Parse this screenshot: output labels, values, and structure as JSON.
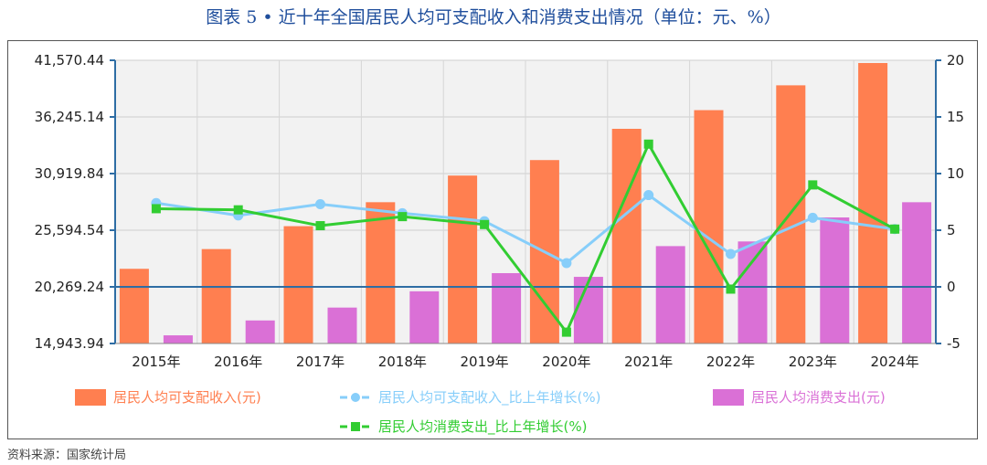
{
  "title": "图表 5 • 近十年全国居民人均可支配收入和消费支出情况（单位：元、%）",
  "source": "资料来源：国家统计局",
  "chart_data": {
    "type": "bar",
    "categories": [
      "2015年",
      "2016年",
      "2017年",
      "2018年",
      "2019年",
      "2020年",
      "2021年",
      "2022年",
      "2023年",
      "2024年"
    ],
    "left_ticks": [
      "41,570.44",
      "36,245.14",
      "30,919.84",
      "25,594.54",
      "20,269.24",
      "14,943.94"
    ],
    "right_ticks": [
      "20",
      "15",
      "10",
      "5",
      "0",
      "-5"
    ],
    "ylim_left": [
      14943.94,
      41570.44
    ],
    "ylim_right": [
      -5,
      20
    ],
    "grid": true,
    "legend_position": "bottom",
    "colors": {
      "income_bar": "#ff7f50",
      "income_growth": "#87cefa",
      "consumption_bar": "#da70d6",
      "consumption_growth": "#32cd32",
      "axis": "#2e6da4"
    },
    "series": [
      {
        "name": "居民人均可支配收入(元)",
        "kind": "bar",
        "axis": "left",
        "values": [
          21966,
          23821,
          25974,
          28228,
          30733,
          32189,
          35128,
          36883,
          39218,
          41314
        ]
      },
      {
        "name": "居民人均消费支出(元)",
        "kind": "bar",
        "axis": "left",
        "values": [
          15712,
          17111,
          18322,
          19853,
          21559,
          21210,
          24100,
          24538,
          26796,
          28227
        ]
      },
      {
        "name": "居民人均可支配收入_比上年增长(%)",
        "kind": "line",
        "axis": "right",
        "values": [
          7.4,
          6.3,
          7.3,
          6.5,
          5.8,
          2.1,
          8.1,
          2.9,
          6.1,
          5.1
        ]
      },
      {
        "name": "居民人均消费支出_比上年增长(%)",
        "kind": "line",
        "axis": "right",
        "values": [
          6.9,
          6.8,
          5.4,
          6.2,
          5.5,
          -4.0,
          12.6,
          -0.2,
          9.0,
          5.1
        ]
      }
    ]
  }
}
